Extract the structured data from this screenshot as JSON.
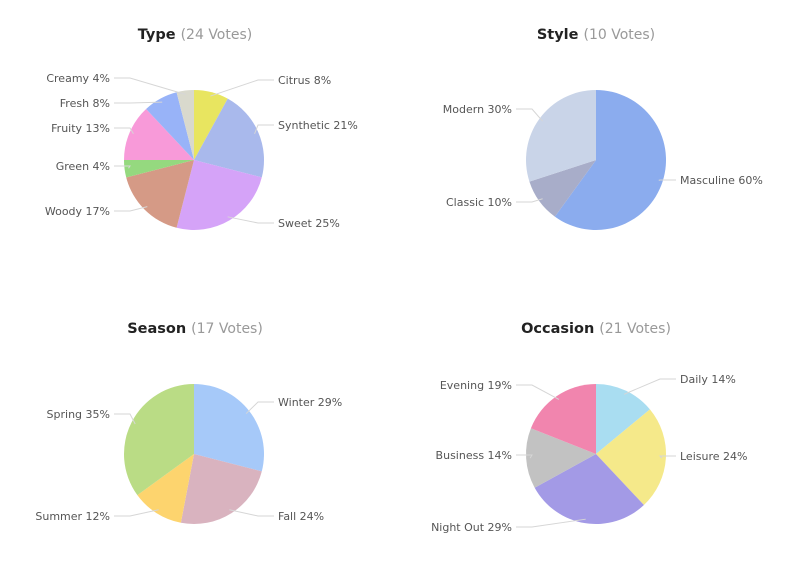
{
  "chart_data": [
    {
      "type": "pie",
      "title": "Type",
      "votes": "(24 Votes)",
      "slices": [
        {
          "label": "Citrus 8%",
          "value": 8,
          "color": "#e8e560"
        },
        {
          "label": "Synthetic 21%",
          "value": 21,
          "color": "#a9b9ec"
        },
        {
          "label": "Sweet 25%",
          "value": 25,
          "color": "#d5a3f8"
        },
        {
          "label": "Woody 17%",
          "value": 17,
          "color": "#d59a86"
        },
        {
          "label": "Green 4%",
          "value": 4,
          "color": "#95d97f"
        },
        {
          "label": "Fruity 13%",
          "value": 13,
          "color": "#f89ad9"
        },
        {
          "label": "Fresh 8%",
          "value": 8,
          "color": "#98b3f8"
        },
        {
          "label": "Creamy 4%",
          "value": 4,
          "color": "#d9d9cd"
        }
      ]
    },
    {
      "type": "pie",
      "title": "Style",
      "votes": "(10 Votes)",
      "slices": [
        {
          "label": "Masculine 60%",
          "value": 60,
          "color": "#8bacee"
        },
        {
          "label": "Classic 10%",
          "value": 10,
          "color": "#a8adc9"
        },
        {
          "label": "Modern 30%",
          "value": 30,
          "color": "#c9d4e8"
        }
      ]
    },
    {
      "type": "pie",
      "title": "Season",
      "votes": "(17 Votes)",
      "slices": [
        {
          "label": "Winter 29%",
          "value": 29,
          "color": "#a6c9f9"
        },
        {
          "label": "Fall 24%",
          "value": 24,
          "color": "#d9b3bf"
        },
        {
          "label": "Summer 12%",
          "value": 12,
          "color": "#fdd46e"
        },
        {
          "label": "Spring 35%",
          "value": 35,
          "color": "#badc85"
        }
      ]
    },
    {
      "type": "pie",
      "title": "Occasion",
      "votes": "(21 Votes)",
      "slices": [
        {
          "label": "Daily 14%",
          "value": 14,
          "color": "#a9ddf1"
        },
        {
          "label": "Leisure 24%",
          "value": 24,
          "color": "#f5e98a"
        },
        {
          "label": "Night Out 29%",
          "value": 29,
          "color": "#a39ae6"
        },
        {
          "label": "Business 14%",
          "value": 14,
          "color": "#c2c2c2"
        },
        {
          "label": "Evening 19%",
          "value": 19,
          "color": "#f185ae"
        }
      ]
    }
  ]
}
